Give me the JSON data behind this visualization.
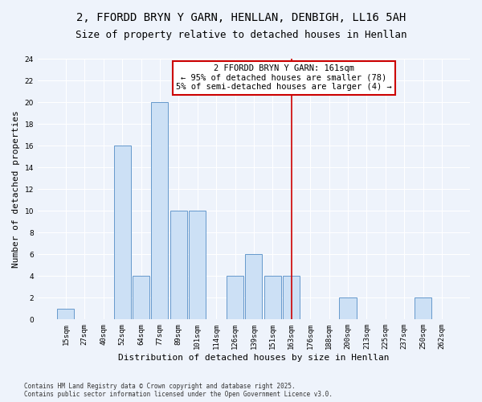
{
  "title_line1": "2, FFORDD BRYN Y GARN, HENLLAN, DENBIGH, LL16 5AH",
  "title_line2": "Size of property relative to detached houses in Henllan",
  "xlabel": "Distribution of detached houses by size in Henllan",
  "ylabel": "Number of detached properties",
  "categories": [
    "15sqm",
    "27sqm",
    "40sqm",
    "52sqm",
    "64sqm",
    "77sqm",
    "89sqm",
    "101sqm",
    "114sqm",
    "126sqm",
    "139sqm",
    "151sqm",
    "163sqm",
    "176sqm",
    "188sqm",
    "200sqm",
    "213sqm",
    "225sqm",
    "237sqm",
    "250sqm",
    "262sqm"
  ],
  "values": [
    1,
    0,
    0,
    16,
    4,
    20,
    10,
    10,
    0,
    4,
    6,
    4,
    4,
    0,
    0,
    2,
    0,
    0,
    0,
    2,
    0
  ],
  "bar_color": "#cce0f5",
  "bar_edge_color": "#6699cc",
  "vline_x_index": 12,
  "vline_color": "#cc0000",
  "annotation_text": "2 FFORDD BRYN Y GARN: 161sqm\n← 95% of detached houses are smaller (78)\n5% of semi-detached houses are larger (4) →",
  "annotation_box_color": "white",
  "annotation_box_edge_color": "#cc0000",
  "ylim": [
    0,
    24
  ],
  "yticks": [
    0,
    2,
    4,
    6,
    8,
    10,
    12,
    14,
    16,
    18,
    20,
    22,
    24
  ],
  "background_color": "#eef3fb",
  "grid_color": "white",
  "footer_text": "Contains HM Land Registry data © Crown copyright and database right 2025.\nContains public sector information licensed under the Open Government Licence v3.0.",
  "title_fontsize": 10,
  "subtitle_fontsize": 9,
  "axis_label_fontsize": 8,
  "tick_fontsize": 6.5,
  "annotation_fontsize": 7.5,
  "footer_fontsize": 5.5
}
